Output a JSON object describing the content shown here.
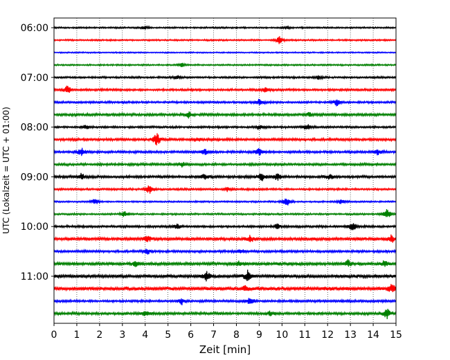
{
  "chart_data": {
    "type": "line",
    "title": "",
    "xlabel": "Zeit  [min]",
    "ylabel": "UTC (Lokalzeit = UTC + 01:00)",
    "xlim": [
      0,
      15
    ],
    "x_ticks": [
      "0",
      "1",
      "2",
      "3",
      "4",
      "5",
      "6",
      "7",
      "8",
      "9",
      "10",
      "11",
      "12",
      "13",
      "14",
      "15"
    ],
    "y_ticks": [
      "06:00",
      "07:00",
      "08:00",
      "09:00",
      "10:00",
      "11:00"
    ],
    "grid": "vertical dotted",
    "trace_interval_minutes": 15,
    "start_time": "06:00",
    "colors": [
      "#000000",
      "#ff0000",
      "#0000ff",
      "#008000"
    ],
    "traces": [
      {
        "start": "06:00",
        "color": "#000000",
        "noise": 1.0,
        "events": [
          [
            4.0,
            3
          ],
          [
            10.2,
            2
          ]
        ]
      },
      {
        "start": "06:15",
        "color": "#ff0000",
        "noise": 1.0,
        "events": [
          [
            9.9,
            6
          ]
        ]
      },
      {
        "start": "06:30",
        "color": "#0000ff",
        "noise": 0.8,
        "events": []
      },
      {
        "start": "06:45",
        "color": "#008000",
        "noise": 1.0,
        "events": [
          [
            5.6,
            3
          ]
        ]
      },
      {
        "start": "07:00",
        "color": "#000000",
        "noise": 1.2,
        "events": [
          [
            5.4,
            3
          ],
          [
            11.6,
            3
          ]
        ]
      },
      {
        "start": "07:15",
        "color": "#ff0000",
        "noise": 1.4,
        "events": [
          [
            0.6,
            7
          ],
          [
            9.3,
            4
          ]
        ]
      },
      {
        "start": "07:30",
        "color": "#0000ff",
        "noise": 1.3,
        "events": [
          [
            9.0,
            5
          ],
          [
            12.4,
            6
          ]
        ]
      },
      {
        "start": "07:45",
        "color": "#008000",
        "noise": 1.6,
        "events": [
          [
            5.9,
            5
          ],
          [
            11.2,
            3
          ]
        ]
      },
      {
        "start": "08:00",
        "color": "#000000",
        "noise": 1.3,
        "events": [
          [
            1.4,
            4
          ],
          [
            9.0,
            4
          ],
          [
            11.1,
            5
          ]
        ]
      },
      {
        "start": "08:15",
        "color": "#ff0000",
        "noise": 1.6,
        "events": [
          [
            4.5,
            11
          ],
          [
            6.3,
            3
          ]
        ]
      },
      {
        "start": "08:30",
        "color": "#0000ff",
        "noise": 1.5,
        "events": [
          [
            1.2,
            6
          ],
          [
            6.6,
            5
          ],
          [
            9.0,
            7
          ],
          [
            14.2,
            5
          ]
        ]
      },
      {
        "start": "08:45",
        "color": "#008000",
        "noise": 1.5,
        "events": [
          [
            5.6,
            4
          ]
        ]
      },
      {
        "start": "09:00",
        "color": "#000000",
        "noise": 1.6,
        "events": [
          [
            1.2,
            5
          ],
          [
            6.6,
            4
          ],
          [
            9.1,
            9
          ],
          [
            9.8,
            6
          ],
          [
            12.1,
            4
          ]
        ]
      },
      {
        "start": "09:15",
        "color": "#ff0000",
        "noise": 1.3,
        "events": [
          [
            4.2,
            8
          ],
          [
            7.6,
            3
          ]
        ]
      },
      {
        "start": "09:30",
        "color": "#0000ff",
        "noise": 1.0,
        "events": [
          [
            1.8,
            5
          ],
          [
            10.2,
            8
          ],
          [
            12.6,
            4
          ]
        ]
      },
      {
        "start": "09:45",
        "color": "#008000",
        "noise": 1.1,
        "events": [
          [
            3.1,
            5
          ],
          [
            14.6,
            9
          ]
        ]
      },
      {
        "start": "10:00",
        "color": "#000000",
        "noise": 1.4,
        "events": [
          [
            5.4,
            4
          ],
          [
            9.8,
            4
          ],
          [
            13.1,
            7
          ]
        ]
      },
      {
        "start": "10:15",
        "color": "#ff0000",
        "noise": 1.9,
        "events": [
          [
            4.1,
            5
          ],
          [
            8.6,
            5
          ],
          [
            14.8,
            6
          ]
        ]
      },
      {
        "start": "10:30",
        "color": "#0000ff",
        "noise": 1.5,
        "events": [
          [
            4.1,
            4
          ],
          [
            8.2,
            3
          ]
        ]
      },
      {
        "start": "10:45",
        "color": "#008000",
        "noise": 1.9,
        "events": [
          [
            3.6,
            4
          ],
          [
            8.1,
            4
          ],
          [
            12.9,
            5
          ],
          [
            14.5,
            5
          ]
        ]
      },
      {
        "start": "11:00",
        "color": "#000000",
        "noise": 2.0,
        "events": [
          [
            6.7,
            7
          ],
          [
            8.5,
            8
          ]
        ]
      },
      {
        "start": "11:15",
        "color": "#ff0000",
        "noise": 2.3,
        "events": [
          [
            8.4,
            4
          ],
          [
            14.8,
            6
          ]
        ]
      },
      {
        "start": "11:30",
        "color": "#0000ff",
        "noise": 1.5,
        "events": [
          [
            5.6,
            5
          ],
          [
            8.6,
            6
          ]
        ]
      },
      {
        "start": "11:45",
        "color": "#008000",
        "noise": 1.6,
        "events": [
          [
            4.0,
            4
          ],
          [
            9.5,
            4
          ],
          [
            14.6,
            8
          ]
        ]
      }
    ]
  }
}
